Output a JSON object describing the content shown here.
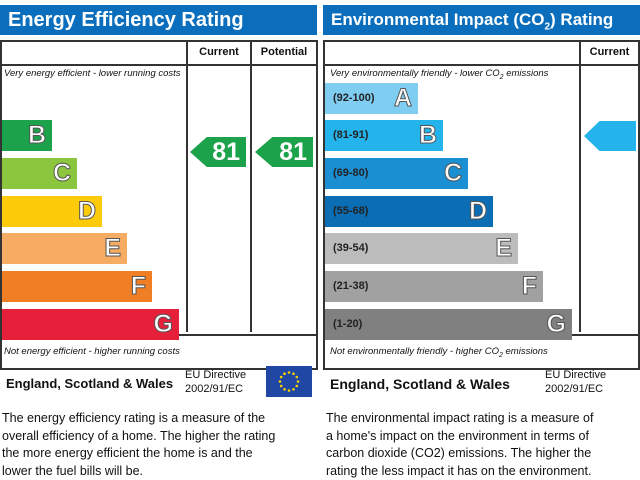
{
  "energy": {
    "title": "Energy Efficiency Rating",
    "current_label": "Current",
    "potential_label": "Potential",
    "top_note": "Very energy efficient - lower running costs",
    "bottom_note": "Not energy efficient - higher running costs",
    "bands": [
      {
        "letter": "B",
        "color": "#1ba24a"
      },
      {
        "letter": "C",
        "color": "#8cc63f"
      },
      {
        "letter": "D",
        "color": "#fecb0a"
      },
      {
        "letter": "E",
        "color": "#f6ac62"
      },
      {
        "letter": "F",
        "color": "#f07e24"
      },
      {
        "letter": "G",
        "color": "#e6203a"
      }
    ],
    "current": "81",
    "potential": "81",
    "rating_color": "#1ba24a",
    "region": "England, Scotland & Wales",
    "directive_line1": "EU Directive",
    "directive_line2": "2002/91/EC",
    "description": [
      "The energy efficiency rating is a measure of the",
      "overall efficiency of a home. The higher the rating",
      "the more energy efficient the home is and the",
      "lower the fuel bills will be."
    ]
  },
  "environment": {
    "title": "Environmental Impact (CO2) Rating",
    "title_pre": "Environmental Impact (CO",
    "title_sub": "2",
    "title_post": ") Rating",
    "current_label": "Current",
    "top_note_pre": "Very environmentally friendly - lower CO",
    "top_note_post": " emissions",
    "bottom_note_pre": "Not environmentally friendly - higher CO",
    "bottom_note_post": " emissions",
    "bands": [
      {
        "range": "(92-100)",
        "letter": "A",
        "color": "#80cdf2"
      },
      {
        "range": "(81-91)",
        "letter": "B",
        "color": "#24b3eb"
      },
      {
        "range": "(69-80)",
        "letter": "C",
        "color": "#1a8fd2"
      },
      {
        "range": "(55-68)",
        "letter": "D",
        "color": "#0b6db4"
      },
      {
        "range": "(39-54)",
        "letter": "E",
        "color": "#bcbcbc"
      },
      {
        "range": "(21-38)",
        "letter": "F",
        "color": "#a1a1a1"
      },
      {
        "range": "(1-20)",
        "letter": "G",
        "color": "#808080"
      }
    ],
    "current_rating_color": "#24b3eb",
    "region": "England, Scotland & Wales",
    "directive_line1": "EU Directive",
    "directive_line2": "2002/91/EC",
    "description": [
      "The environmental impact rating is a measure of",
      "a home's impact on the environment in terms of",
      "carbon dioxide (CO2) emissions. The higher the",
      "rating the less impact it has on the environment."
    ]
  }
}
